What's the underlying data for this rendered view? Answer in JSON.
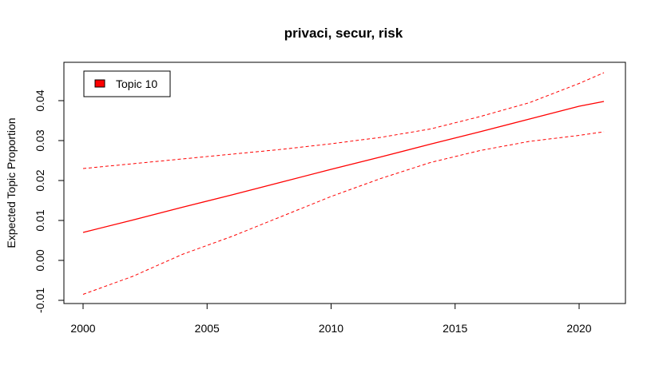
{
  "chart_data": {
    "type": "line",
    "title": "privaci, secur, risk",
    "xlabel": "",
    "ylabel": "Expected Topic Proportion",
    "xlim": [
      1999,
      2022
    ],
    "ylim": [
      -0.01,
      0.05
    ],
    "x_ticks": [
      2000,
      2005,
      2010,
      2015,
      2020
    ],
    "y_ticks": [
      -0.01,
      0.0,
      0.01,
      0.02,
      0.03,
      0.04
    ],
    "y_tick_labels": [
      "-0.01",
      "0.00",
      "0.01",
      "0.02",
      "0.03",
      "0.04"
    ],
    "legend": {
      "position": "top-left",
      "entries": [
        "Topic 10"
      ]
    },
    "colors": {
      "series": "#ff0000"
    },
    "grid": false,
    "x": [
      2000,
      2002,
      2004,
      2006,
      2008,
      2010,
      2012,
      2014,
      2016,
      2018,
      2020,
      2021
    ],
    "series": [
      {
        "name": "Topic 10",
        "role": "estimate",
        "style": "solid",
        "values": [
          0.007,
          0.0101,
          0.0133,
          0.0164,
          0.0196,
          0.0228,
          0.0259,
          0.0291,
          0.0322,
          0.0354,
          0.0386,
          0.0398
        ]
      },
      {
        "role": "upper",
        "style": "dashed",
        "values": [
          0.023,
          0.0242,
          0.0254,
          0.0266,
          0.0278,
          0.0292,
          0.0308,
          0.0329,
          0.036,
          0.0395,
          0.0443,
          0.047
        ]
      },
      {
        "role": "lower",
        "style": "dashed",
        "values": [
          -0.0085,
          -0.004,
          0.0015,
          0.006,
          0.011,
          0.016,
          0.0205,
          0.0245,
          0.0275,
          0.0298,
          0.0313,
          0.0322
        ]
      }
    ]
  }
}
